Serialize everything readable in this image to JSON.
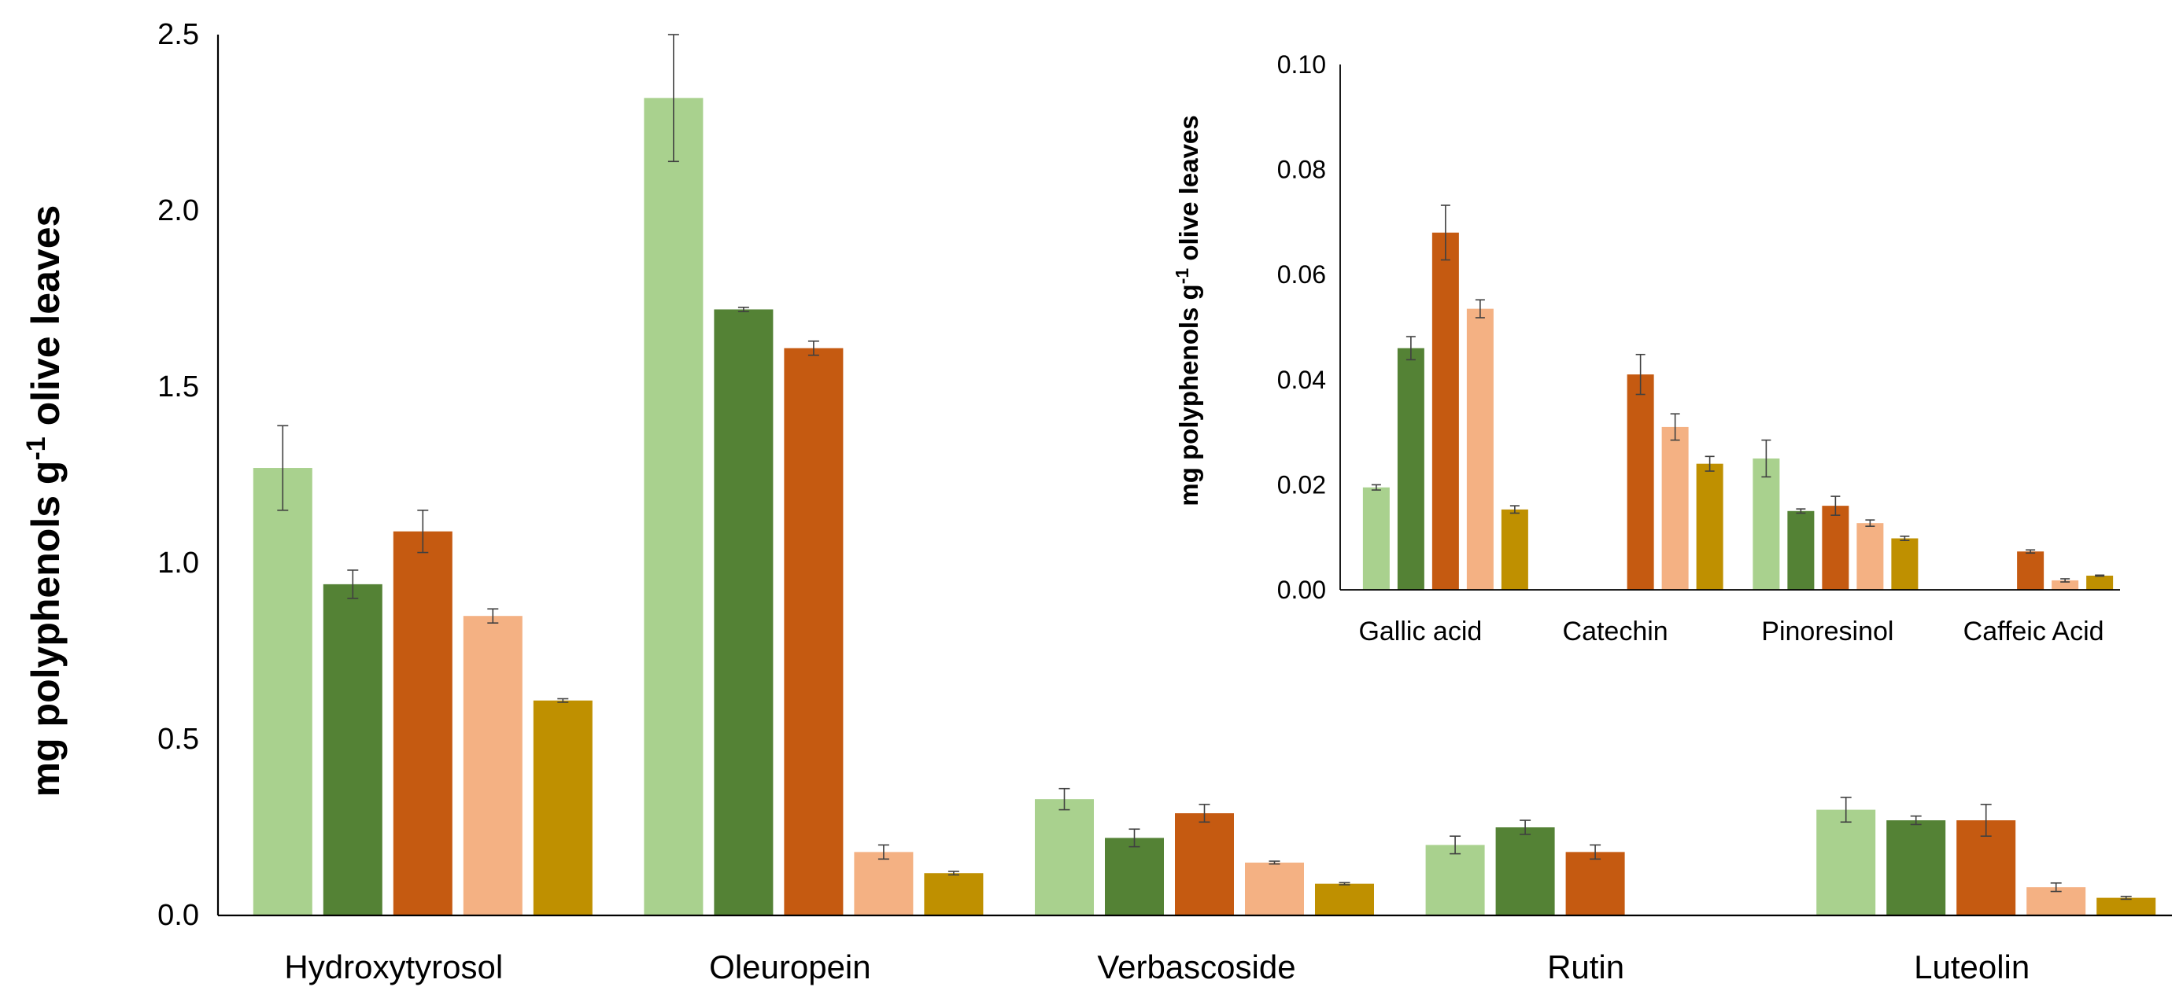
{
  "chart_data": [
    {
      "type": "bar",
      "title": "",
      "xlabel": "",
      "ylabel_main": "mg polyphenols g",
      "ylabel_sup": "-1",
      "ylabel_tail": " olive leaves",
      "ylim": [
        0,
        2.5
      ],
      "yticks": [
        "0.0",
        "0.5",
        "1.0",
        "1.5",
        "2.0",
        "2.5"
      ],
      "categories": [
        "Hydroxytyrosol",
        "Oleuropein",
        "Verbascoside",
        "Rutin",
        "Luteolin"
      ],
      "series": [
        {
          "name": "series-1",
          "color": "#a9d18e",
          "values": [
            1.27,
            2.32,
            0.33,
            0.2,
            0.3
          ],
          "errors": [
            0.12,
            0.18,
            0.03,
            0.025,
            0.035
          ]
        },
        {
          "name": "series-2",
          "color": "#548235",
          "values": [
            0.94,
            1.72,
            0.22,
            0.25,
            0.27
          ],
          "errors": [
            0.04,
            0.006,
            0.025,
            0.02,
            0.012
          ]
        },
        {
          "name": "series-3",
          "color": "#c55a11",
          "values": [
            1.09,
            1.61,
            0.29,
            0.18,
            0.27
          ],
          "errors": [
            0.06,
            0.02,
            0.025,
            0.02,
            0.045
          ]
        },
        {
          "name": "series-4",
          "color": "#f4b183",
          "values": [
            0.85,
            0.18,
            0.15,
            null,
            0.08
          ],
          "errors": [
            0.02,
            0.02,
            0.004,
            null,
            0.012
          ]
        },
        {
          "name": "series-5",
          "color": "#bf9000",
          "values": [
            0.61,
            0.12,
            0.09,
            null,
            0.05
          ],
          "errors": [
            0.005,
            0.005,
            0.003,
            null,
            0.004
          ]
        }
      ]
    },
    {
      "type": "bar",
      "title": "",
      "xlabel": "",
      "ylabel_main": "mg polyphenols g",
      "ylabel_sup": "-1",
      "ylabel_tail": " olive leaves",
      "ylim": [
        0,
        0.1
      ],
      "yticks": [
        "0.00",
        "0.02",
        "0.04",
        "0.06",
        "0.08",
        "0.10"
      ],
      "categories": [
        "Gallic acid",
        "Catechin",
        "Pinoresinol",
        "Caffeic Acid"
      ],
      "series": [
        {
          "name": "series-1",
          "color": "#a9d18e",
          "values": [
            0.0195,
            null,
            0.025,
            null
          ],
          "errors": [
            0.0005,
            null,
            0.0035,
            null
          ]
        },
        {
          "name": "series-2",
          "color": "#548235",
          "values": [
            0.046,
            null,
            0.015,
            null
          ],
          "errors": [
            0.0022,
            null,
            0.0004,
            null
          ]
        },
        {
          "name": "series-3",
          "color": "#c55a11",
          "values": [
            0.068,
            0.041,
            0.016,
            0.0073
          ],
          "errors": [
            0.0052,
            0.0038,
            0.0018,
            0.0003
          ]
        },
        {
          "name": "series-4",
          "color": "#f4b183",
          "values": [
            0.0535,
            0.031,
            0.0127,
            0.0018
          ],
          "errors": [
            0.0017,
            0.0025,
            0.0006,
            0.0003
          ]
        },
        {
          "name": "series-5",
          "color": "#bf9000",
          "values": [
            0.0153,
            0.024,
            0.0098,
            0.0027
          ],
          "errors": [
            0.0007,
            0.0014,
            0.0004,
            0.0001
          ]
        }
      ]
    }
  ]
}
